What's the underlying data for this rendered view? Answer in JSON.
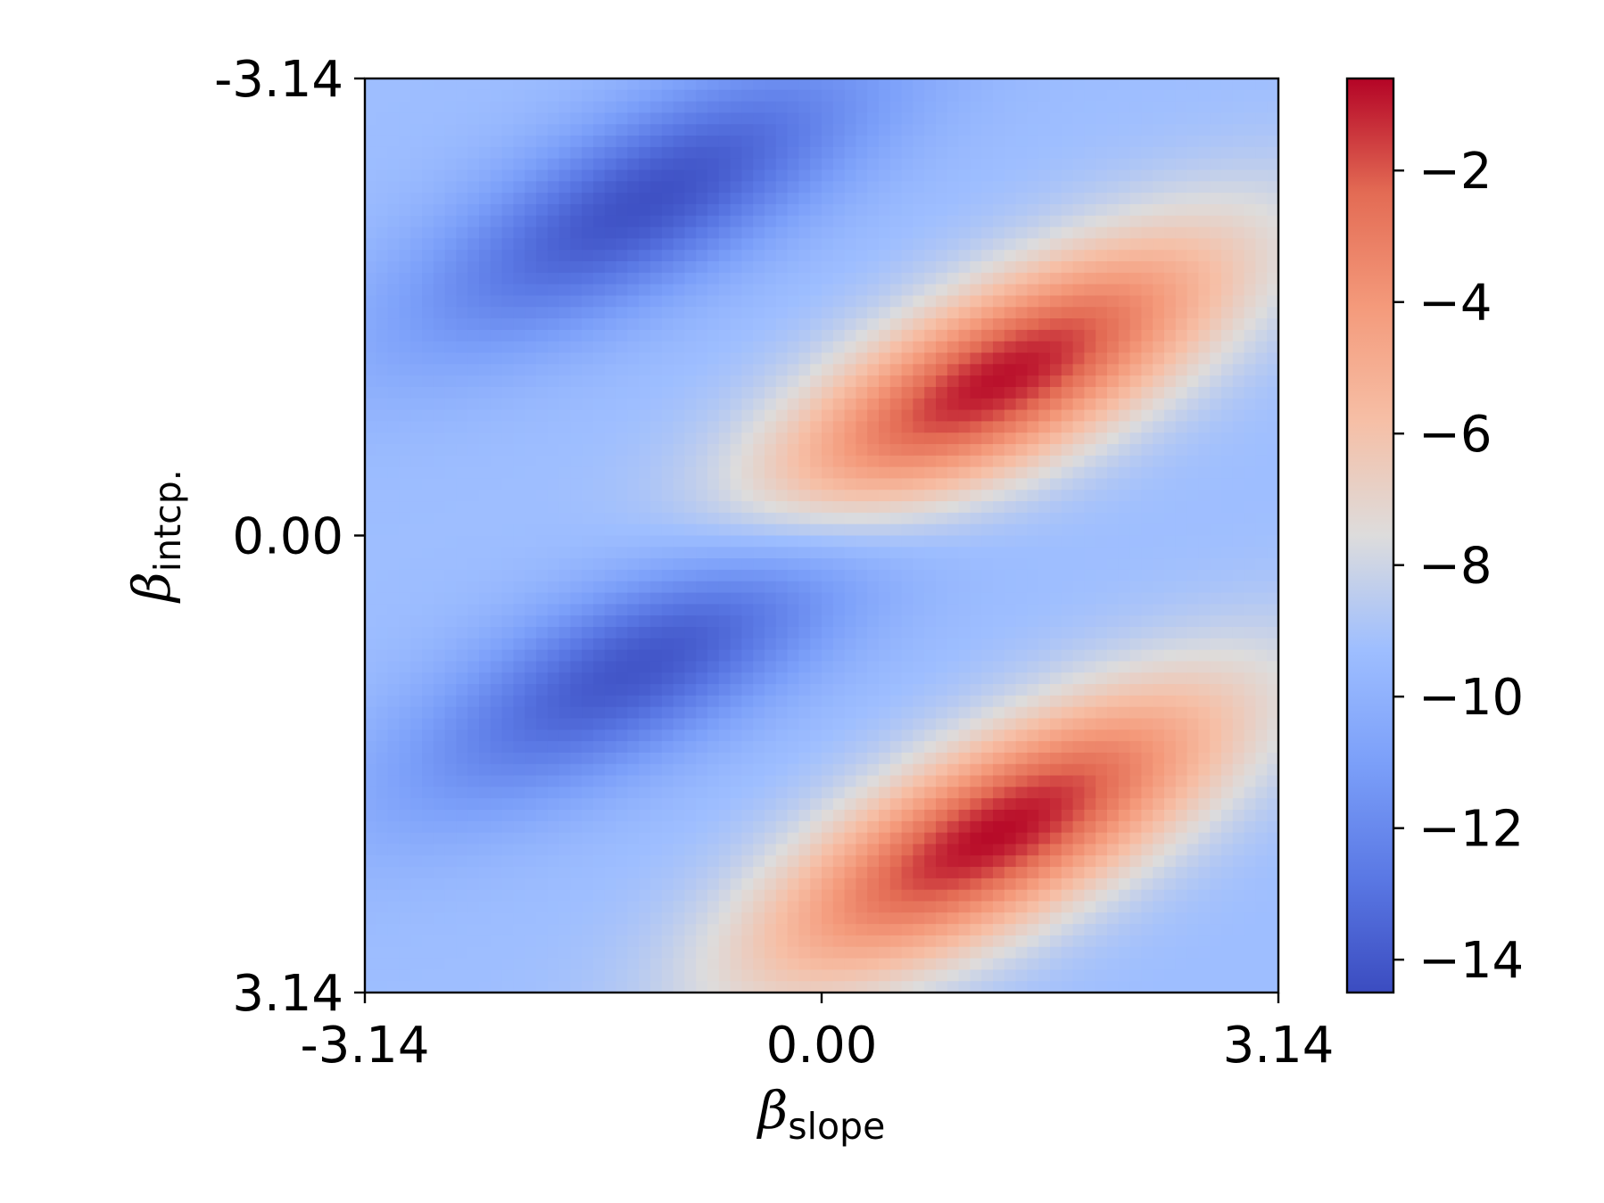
{
  "chart_data": {
    "type": "heatmap",
    "xlabel": {
      "symbol": "β",
      "subscript": "slope"
    },
    "ylabel": {
      "symbol": "β",
      "subscript": "intcp."
    },
    "xlim": [
      -3.14,
      3.14
    ],
    "ylim": [
      -3.14,
      3.14
    ],
    "y_axis_inverted": true,
    "x_ticks": [
      {
        "value": -3.14,
        "label": "-3.14"
      },
      {
        "value": 0.0,
        "label": "0.00"
      },
      {
        "value": 3.14,
        "label": "3.14"
      }
    ],
    "y_ticks": [
      {
        "value": -3.14,
        "label": "-3.14"
      },
      {
        "value": 0.0,
        "label": "0.00"
      },
      {
        "value": 3.14,
        "label": "3.14"
      }
    ],
    "colormap": "coolwarm",
    "colorbar": {
      "range": [
        -14.5,
        -0.6
      ],
      "ticks": [
        {
          "value": -2,
          "label": "−2"
        },
        {
          "value": -4,
          "label": "−4"
        },
        {
          "value": -6,
          "label": "−6"
        },
        {
          "value": -8,
          "label": "−8"
        },
        {
          "value": -10,
          "label": "−10"
        },
        {
          "value": -12,
          "label": "−12"
        },
        {
          "value": -14,
          "label": "−14"
        }
      ]
    },
    "grid_resolution": 80,
    "field_features": [
      {
        "kind": "minimum",
        "slope": -1.2,
        "intercept": -2.3,
        "value": -14.3
      },
      {
        "kind": "minimum",
        "slope": -1.2,
        "intercept": 0.85,
        "value": -14.3
      },
      {
        "kind": "maximum",
        "slope": 1.2,
        "intercept": -1.05,
        "value": -0.7
      },
      {
        "kind": "maximum",
        "slope": 1.2,
        "intercept": 2.05,
        "value": -0.7
      }
    ],
    "grid": false
  }
}
